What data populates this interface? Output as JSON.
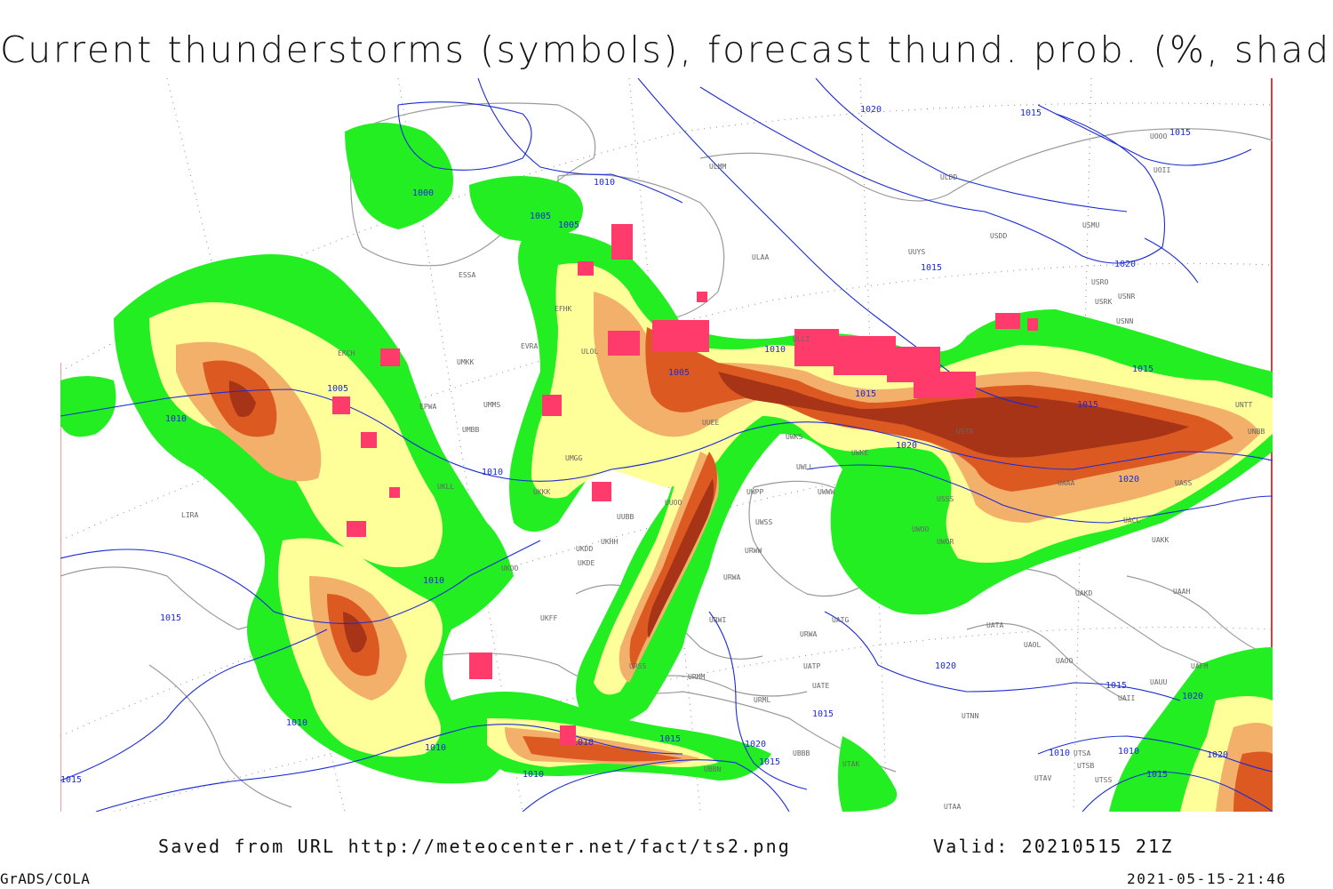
{
  "title": "Current thunderstorms (symbols), forecast thund. prob. (%, shaded)",
  "footer": {
    "saved_from": "Saved from URL http://meteocenter.net/fact/ts2.png",
    "valid": "Valid: 20210515 21Z",
    "software": "GrADS/COLA",
    "generated": "2021-05-15-21:46"
  },
  "colors": {
    "prob_green": "#22ee22",
    "prob_yellow": "#ffff99",
    "prob_light_orange": "#f2b06a",
    "prob_orange": "#dc5a22",
    "prob_dark": "#a83418",
    "thunderstorm_symbol": "#ff3b6b",
    "isobar": "#1a2bd6",
    "coastline": "#9a9a9a",
    "frame_right": "#d44040"
  },
  "isobar_labels": [
    "1000",
    "1005",
    "1005",
    "1005",
    "1010",
    "1010",
    "1010",
    "1010",
    "1010",
    "1010",
    "1010",
    "1010",
    "1010",
    "1010",
    "1015",
    "1015",
    "1015",
    "1015",
    "1015",
    "1015",
    "1015",
    "1015",
    "1015",
    "1015",
    "1020",
    "1020",
    "1020",
    "1020",
    "1020",
    "1020",
    "1020"
  ],
  "stations": [
    "ULMM",
    "ULDD",
    "UOOO",
    "UOII",
    "USDD",
    "USMU",
    "UUYS",
    "ULAA",
    "USRO",
    "USRK",
    "USNR",
    "USNN",
    "UMKK",
    "EPWA",
    "UMMS",
    "UMBB",
    "UKLL",
    "UKKK",
    "UUOO",
    "UUBB",
    "UKHH",
    "UKDD",
    "UKDE",
    "UKOO",
    "UKFF",
    "URSS",
    "URMM",
    "URML",
    "UBBB",
    "UBBN",
    "UUEE",
    "UWKS",
    "UWLL",
    "UWWW",
    "UWPP",
    "UWSS",
    "URWW",
    "URWA",
    "URWI",
    "UATG",
    "UATP",
    "UATE",
    "UTAK",
    "UTAA",
    "UTAV",
    "UTSS",
    "UTSB",
    "UTSA",
    "UTNN",
    "UATA",
    "UAOL",
    "UAOO",
    "UAUU",
    "UAII",
    "UAFM",
    "UACC",
    "UAKK",
    "UAKD",
    "UAAH",
    "UASS",
    "UAAA",
    "UWOO",
    "UWOR",
    "USSS",
    "UWKE",
    "USTR",
    "UNBB",
    "UNTT",
    "ULLI",
    "EVRA",
    "ULOL",
    "LIRA",
    "EKCH",
    "ESSA",
    "EFHK",
    "UMGG"
  ]
}
